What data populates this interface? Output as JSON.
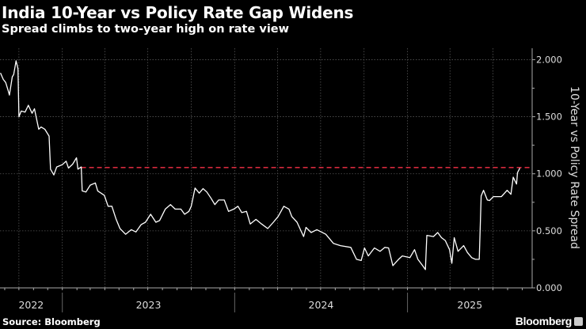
{
  "header": {
    "title": "India 10-Year vs Policy Rate Gap Widens",
    "subtitle": "Spread climbs to two-year high on rate view"
  },
  "footer": {
    "source": "Source: Bloomberg",
    "brand": "Bloomberg",
    "brand_icon": "bloomberg-terminal-icon"
  },
  "colors": {
    "background": "#000000",
    "line": "#ffffff",
    "reference_line": "#d6293d",
    "grid": "#555555"
  },
  "chart_data": {
    "type": "line",
    "title": "India 10-Year vs Policy Rate Gap Widens",
    "subtitle": "Spread climbs to two-year high on rate view",
    "ylabel": "10-Year vs Policy Rate Spread",
    "y_axis_side": "right",
    "ylim": [
      0,
      2.1
    ],
    "yticks": [
      "0.000",
      "0.500",
      "1.000",
      "1.500",
      "2.000"
    ],
    "xlim": [
      "2022-08-22",
      "2025-09-22"
    ],
    "xtick_labels": [
      "2022",
      "2023",
      "2024",
      "2025"
    ],
    "grid": true,
    "legend": "none",
    "reference_line": {
      "y": 1.055,
      "from": "2023-02-10",
      "style": "dashed"
    },
    "series": [
      {
        "x": [
          "2022-08-23",
          "2022-08-29",
          "2022-09-03",
          "2022-09-09",
          "2022-09-11",
          "2022-09-17",
          "2022-09-20",
          "2022-09-25",
          "2022-09-29",
          "2022-10-01",
          "2022-10-06",
          "2022-10-14",
          "2022-10-21",
          "2022-10-29",
          "2022-11-03",
          "2022-11-12",
          "2022-11-17",
          "2022-11-25",
          "2022-12-04",
          "2022-12-07",
          "2022-12-14",
          "2022-12-20",
          "2023-01-01",
          "2023-01-09",
          "2023-01-14",
          "2023-01-23",
          "2023-01-31",
          "2023-02-03",
          "2023-02-10",
          "2023-02-12",
          "2023-02-20",
          "2023-03-01",
          "2023-03-12",
          "2023-03-17",
          "2023-03-31",
          "2023-04-08",
          "2023-04-16",
          "2023-04-25",
          "2023-05-03",
          "2023-05-15",
          "2023-05-27",
          "2023-06-06",
          "2023-06-17",
          "2023-06-26",
          "2023-07-07",
          "2023-07-18",
          "2023-07-26",
          "2023-08-07",
          "2023-08-18",
          "2023-08-28",
          "2023-09-09",
          "2023-09-17",
          "2023-09-26",
          "2023-10-01",
          "2023-10-09",
          "2023-10-18",
          "2023-10-26",
          "2023-11-03",
          "2023-11-12",
          "2023-11-20",
          "2023-11-28",
          "2023-12-10",
          "2023-12-19",
          "2023-12-30",
          "2024-01-08",
          "2024-01-16",
          "2024-01-26",
          "2024-02-03",
          "2024-02-15",
          "2024-02-27",
          "2024-03-11",
          "2024-03-23",
          "2024-04-02",
          "2024-04-14",
          "2024-04-25",
          "2024-05-01",
          "2024-05-12",
          "2024-05-26",
          "2024-05-31",
          "2024-06-11",
          "2024-06-23",
          "2024-07-12",
          "2024-07-28",
          "2024-08-12",
          "2024-09-03",
          "2024-09-15",
          "2024-09-25",
          "2024-10-02",
          "2024-10-10",
          "2024-10-23",
          "2024-11-04",
          "2024-11-14",
          "2024-11-22",
          "2024-12-01",
          "2024-12-13",
          "2024-12-21",
          "2025-01-06",
          "2025-01-16",
          "2025-01-23",
          "2025-02-02",
          "2025-02-08",
          "2025-02-11",
          "2025-02-25",
          "2025-03-06",
          "2025-03-14",
          "2025-03-22",
          "2025-03-31",
          "2025-04-05",
          "2025-04-10",
          "2025-04-18",
          "2025-04-30",
          "2025-05-08",
          "2025-05-17",
          "2025-05-25",
          "2025-06-02",
          "2025-06-06",
          "2025-06-11",
          "2025-06-19",
          "2025-06-24",
          "2025-07-02",
          "2025-07-19",
          "2025-07-31",
          "2025-08-08",
          "2025-08-13",
          "2025-08-20",
          "2025-08-22",
          "2025-08-27"
        ],
        "y": [
          1.884,
          1.826,
          1.8,
          1.72,
          1.69,
          1.85,
          1.87,
          1.99,
          1.92,
          1.5,
          1.55,
          1.54,
          1.6,
          1.53,
          1.57,
          1.39,
          1.41,
          1.39,
          1.33,
          1.04,
          0.99,
          1.06,
          1.08,
          1.11,
          1.05,
          1.085,
          1.14,
          1.04,
          1.06,
          0.85,
          0.84,
          0.9,
          0.92,
          0.85,
          0.81,
          0.715,
          0.715,
          0.6,
          0.52,
          0.47,
          0.51,
          0.49,
          0.555,
          0.575,
          0.645,
          0.575,
          0.59,
          0.69,
          0.73,
          0.69,
          0.69,
          0.645,
          0.67,
          0.715,
          0.875,
          0.83,
          0.87,
          0.84,
          0.785,
          0.73,
          0.77,
          0.77,
          0.67,
          0.69,
          0.715,
          0.66,
          0.67,
          0.56,
          0.6,
          0.56,
          0.52,
          0.575,
          0.625,
          0.715,
          0.69,
          0.625,
          0.575,
          0.45,
          0.53,
          0.485,
          0.51,
          0.47,
          0.39,
          0.37,
          0.355,
          0.25,
          0.24,
          0.35,
          0.28,
          0.35,
          0.32,
          0.355,
          0.35,
          0.195,
          0.25,
          0.28,
          0.265,
          0.335,
          0.25,
          0.195,
          0.16,
          0.46,
          0.45,
          0.485,
          0.44,
          0.415,
          0.335,
          0.215,
          0.44,
          0.32,
          0.37,
          0.31,
          0.265,
          0.25,
          0.25,
          0.805,
          0.855,
          0.77,
          0.765,
          0.8,
          0.8,
          0.855,
          0.82,
          0.97,
          0.91,
          1.01,
          1.05
        ]
      }
    ]
  }
}
